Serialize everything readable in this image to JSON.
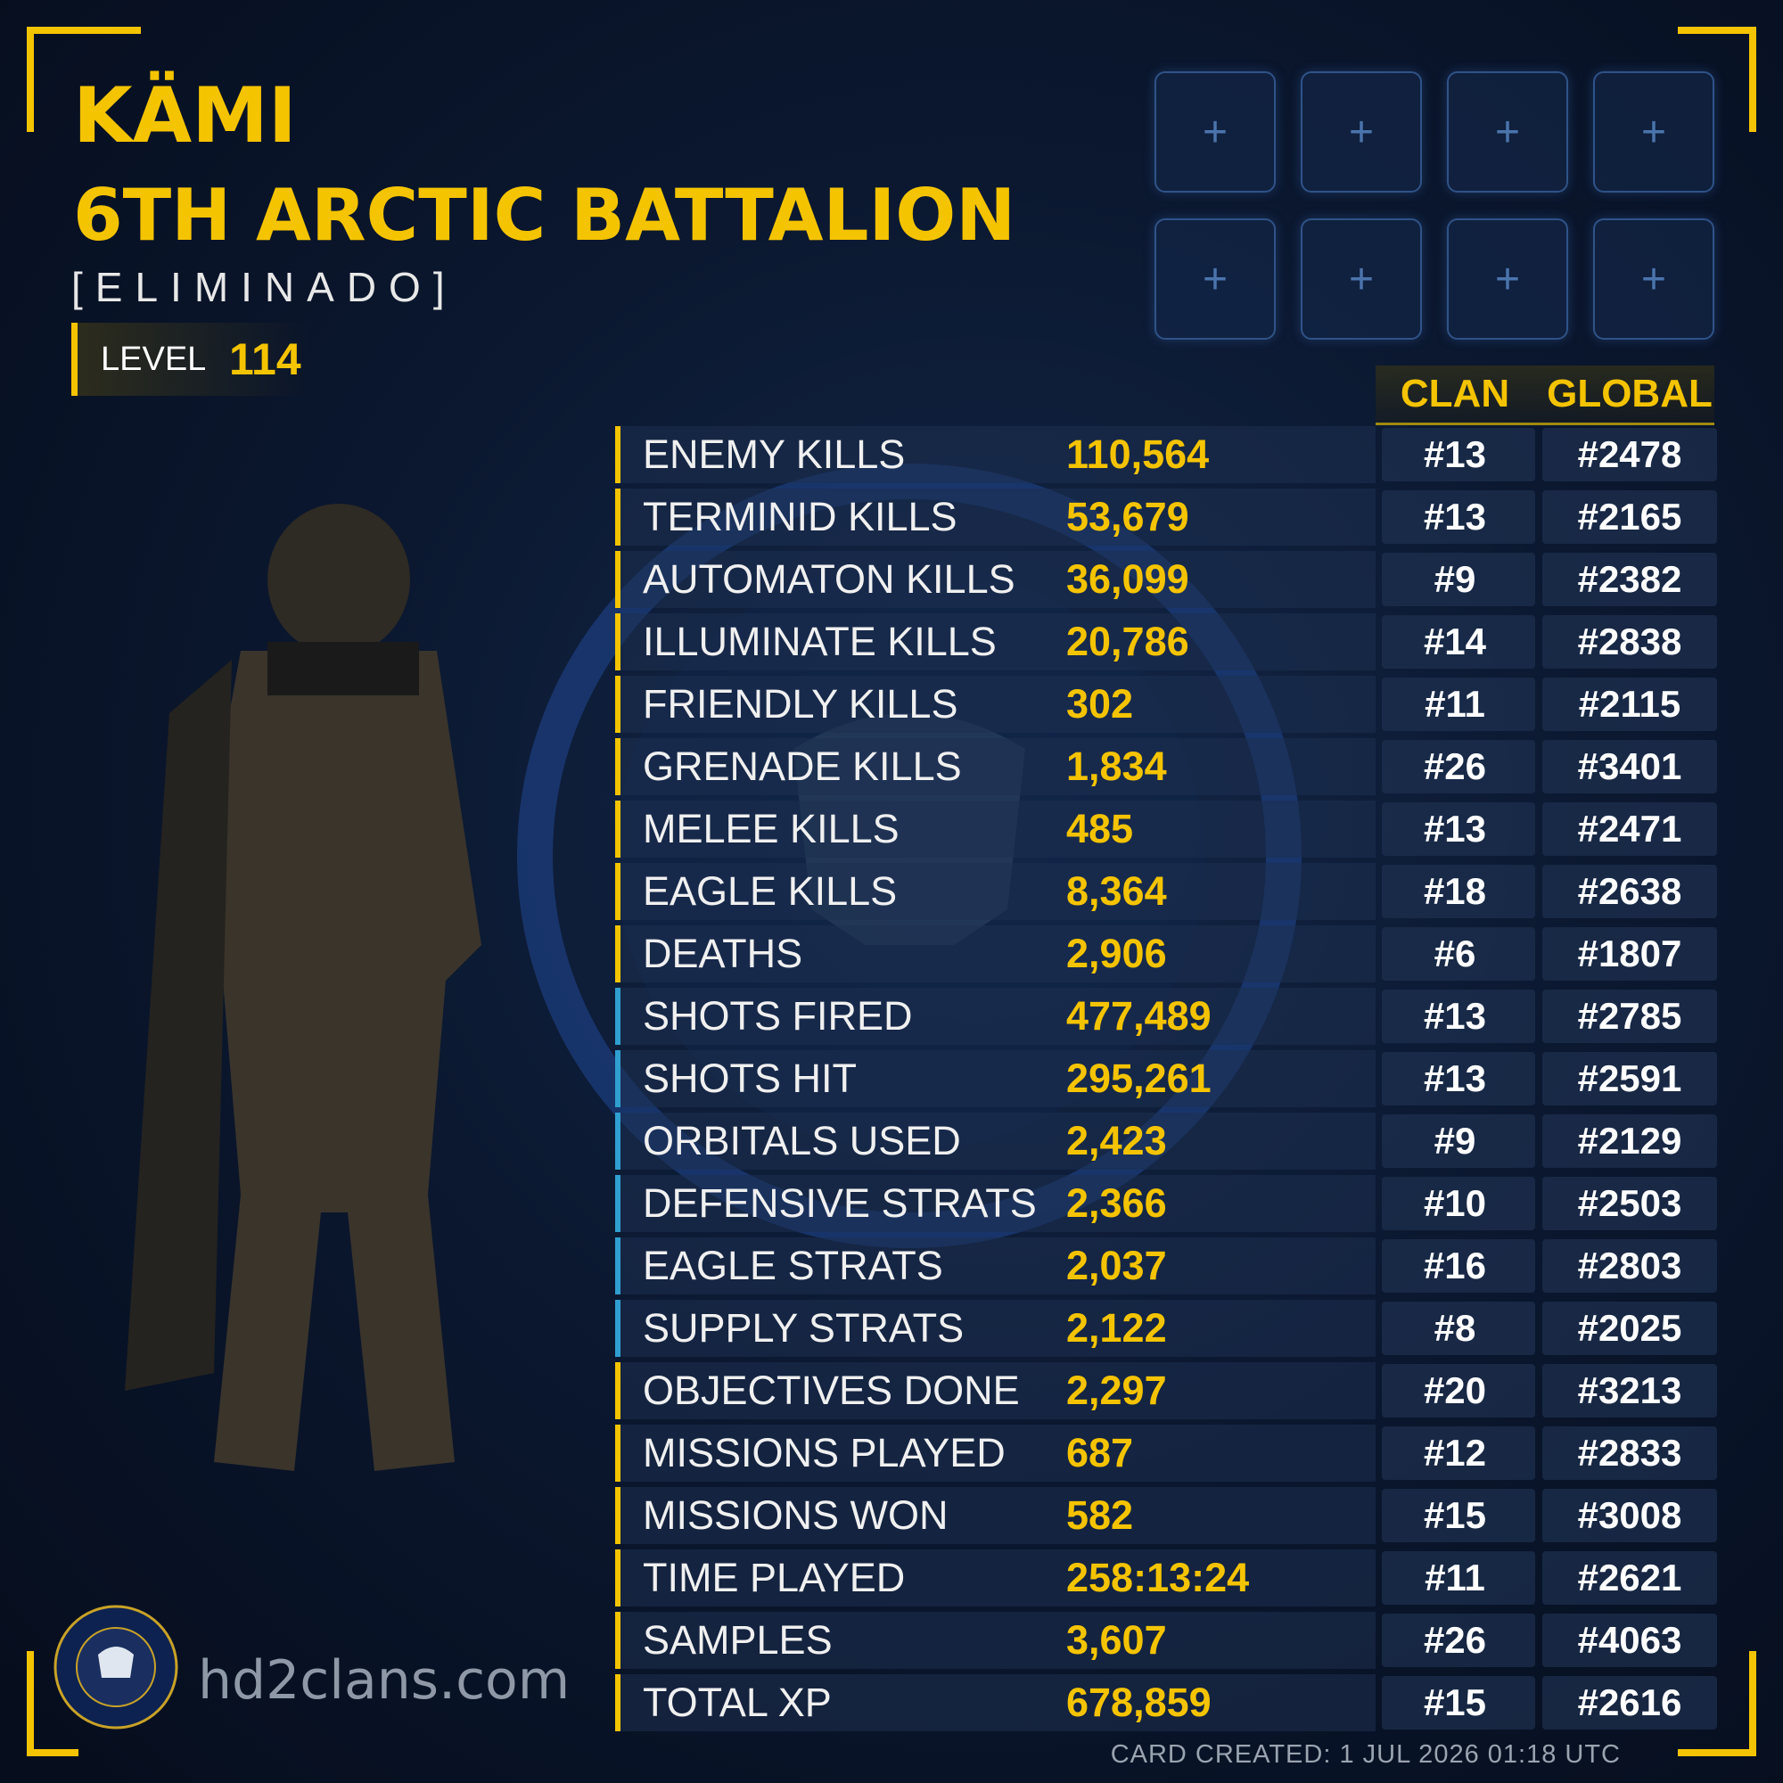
{
  "header": {
    "name": "KÄMI",
    "clan": "6TH ARCTIC BATTALION",
    "tag": "[ELIMINADO]",
    "level_label": "LEVEL",
    "level": "114"
  },
  "columns": {
    "clan": "CLAN",
    "global": "GLOBAL"
  },
  "rows": [
    {
      "label": "ENEMY KILLS",
      "value": "110,564",
      "clan": "#13",
      "global": "#2478",
      "color": "#f5c400"
    },
    {
      "label": "TERMINID KILLS",
      "value": "53,679",
      "clan": "#13",
      "global": "#2165",
      "color": "#f5c400"
    },
    {
      "label": "AUTOMATON KILLS",
      "value": "36,099",
      "clan": "#9",
      "global": "#2382",
      "color": "#f5c400"
    },
    {
      "label": "ILLUMINATE KILLS",
      "value": "20,786",
      "clan": "#14",
      "global": "#2838",
      "color": "#f5c400"
    },
    {
      "label": "FRIENDLY KILLS",
      "value": "302",
      "clan": "#11",
      "global": "#2115",
      "color": "#f5c400"
    },
    {
      "label": "GRENADE KILLS",
      "value": "1,834",
      "clan": "#26",
      "global": "#3401",
      "color": "#f5c400"
    },
    {
      "label": "MELEE KILLS",
      "value": "485",
      "clan": "#13",
      "global": "#2471",
      "color": "#f5c400"
    },
    {
      "label": "EAGLE KILLS",
      "value": "8,364",
      "clan": "#18",
      "global": "#2638",
      "color": "#f5c400"
    },
    {
      "label": "DEATHS",
      "value": "2,906",
      "clan": "#6",
      "global": "#1807",
      "color": "#f5c400"
    },
    {
      "label": "SHOTS FIRED",
      "value": "477,489",
      "clan": "#13",
      "global": "#2785",
      "color": "#2f9fd0"
    },
    {
      "label": "SHOTS HIT",
      "value": "295,261",
      "clan": "#13",
      "global": "#2591",
      "color": "#2f9fd0"
    },
    {
      "label": "ORBITALS USED",
      "value": "2,423",
      "clan": "#9",
      "global": "#2129",
      "color": "#2f9fd0"
    },
    {
      "label": "DEFENSIVE STRATS",
      "value": "2,366",
      "clan": "#10",
      "global": "#2503",
      "color": "#2f9fd0"
    },
    {
      "label": "EAGLE STRATS",
      "value": "2,037",
      "clan": "#16",
      "global": "#2803",
      "color": "#2f9fd0"
    },
    {
      "label": "SUPPLY STRATS",
      "value": "2,122",
      "clan": "#8",
      "global": "#2025",
      "color": "#2f9fd0"
    },
    {
      "label": "OBJECTIVES DONE",
      "value": "2,297",
      "clan": "#20",
      "global": "#3213",
      "color": "#f5c400"
    },
    {
      "label": "MISSIONS PLAYED",
      "value": "687",
      "clan": "#12",
      "global": "#2833",
      "color": "#f5c400"
    },
    {
      "label": "MISSIONS WON",
      "value": "582",
      "clan": "#15",
      "global": "#3008",
      "color": "#f5c400"
    },
    {
      "label": "TIME PLAYED",
      "value": "258:13:24",
      "clan": "#11",
      "global": "#2621",
      "color": "#f5c400"
    },
    {
      "label": "SAMPLES",
      "value": "3,607",
      "clan": "#26",
      "global": "#4063",
      "color": "#f5c400"
    },
    {
      "label": "TOTAL XP",
      "value": "678,859",
      "clan": "#15",
      "global": "#2616",
      "color": "#f5c400"
    }
  ],
  "footer": {
    "site": "hd2clans.com",
    "created": "CARD CREATED: 1 JUL 2026 01:18 UTC"
  }
}
